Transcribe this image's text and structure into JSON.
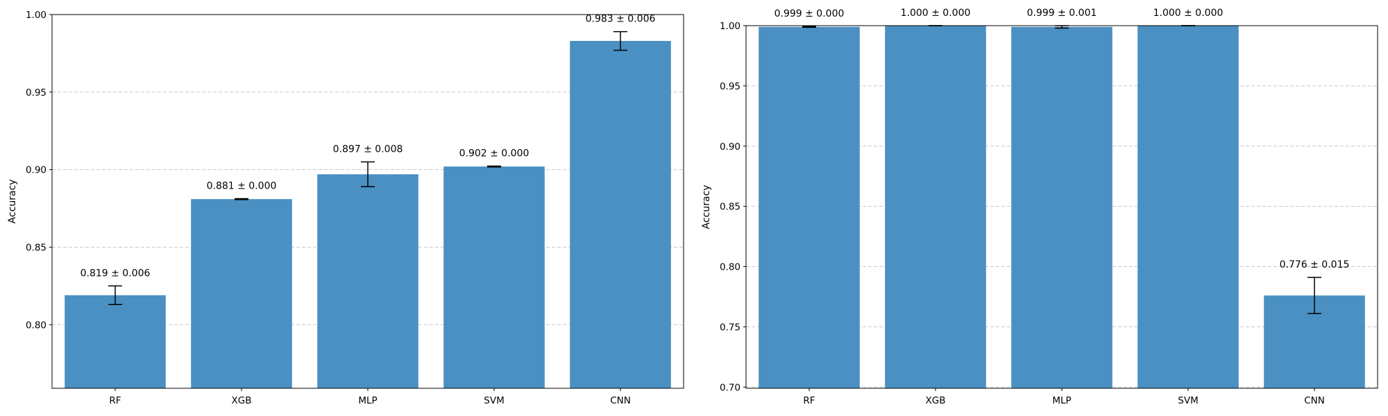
{
  "chart_data": [
    {
      "type": "bar",
      "categories": [
        "RF",
        "XGB",
        "MLP",
        "SVM",
        "CNN"
      ],
      "values": [
        0.819,
        0.881,
        0.897,
        0.902,
        0.983
      ],
      "errors": [
        0.006,
        0.0003,
        0.008,
        0.0003,
        0.006
      ],
      "data_labels": [
        "0.819 ± 0.006",
        "0.881 ± 0.000",
        "0.897 ± 0.008",
        "0.902 ± 0.000",
        "0.983 ± 0.006"
      ],
      "title": "",
      "xlabel": "",
      "ylabel": "Accuracy",
      "ylim": [
        0.759,
        1.0
      ],
      "yticks": [
        0.8,
        0.85,
        0.9,
        0.95,
        1.0
      ],
      "ytick_labels": [
        "0.80",
        "0.85",
        "0.90",
        "0.95",
        "1.00"
      ],
      "grid": "y-dashed",
      "bar_color": "#4a90c2",
      "error_color": "#000000",
      "grid_color": "#c8c8c8"
    },
    {
      "type": "bar",
      "categories": [
        "RF",
        "XGB",
        "MLP",
        "SVM",
        "CNN"
      ],
      "values": [
        0.999,
        1.0,
        0.999,
        1.0,
        0.776
      ],
      "errors": [
        0.0004,
        0.0001,
        0.001,
        0.0001,
        0.015
      ],
      "data_labels": [
        "0.999 ± 0.000",
        "1.000 ± 0.000",
        "0.999 ± 0.001",
        "1.000 ± 0.000",
        "0.776 ± 0.015"
      ],
      "title": "",
      "xlabel": "",
      "ylabel": "Accuracy",
      "ylim": [
        0.699,
        1.0
      ],
      "yticks": [
        0.7,
        0.75,
        0.8,
        0.85,
        0.9,
        0.95,
        1.0
      ],
      "ytick_labels": [
        "0.70",
        "0.75",
        "0.80",
        "0.85",
        "0.90",
        "0.95",
        "1.00"
      ],
      "grid": "y-dashed",
      "bar_color": "#4a90c2",
      "error_color": "#000000",
      "grid_color": "#c8c8c8"
    }
  ]
}
